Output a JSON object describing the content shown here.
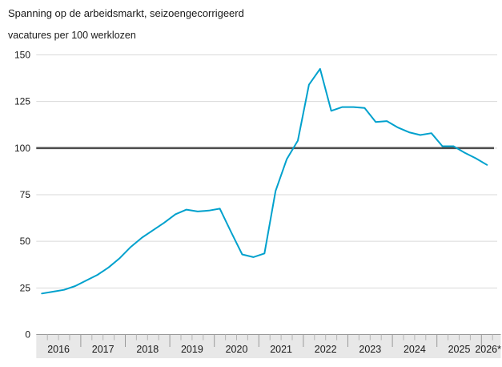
{
  "chart_data": {
    "type": "line",
    "title": "Spanning op de arbeidsmarkt, seizoengecorrigeerd",
    "subtitle": "vacatures per 100 werklozen",
    "frequency": "quarterly",
    "values_start": "2016Q1",
    "x_years": [
      "2016",
      "2017",
      "2018",
      "2019",
      "2020",
      "2021",
      "2022",
      "2023",
      "2024",
      "2025",
      "2026*"
    ],
    "series": [
      {
        "name": "vacatures per 100 werklozen, seizoengecorrigeerd",
        "values": [
          22,
          23,
          24,
          26,
          29,
          32,
          36,
          41,
          47,
          52,
          56,
          60,
          64.5,
          67,
          66,
          66.5,
          67.5,
          55,
          43,
          41.5,
          43.5,
          77,
          94,
          104,
          134,
          142.5,
          120,
          122,
          122,
          121.5,
          114,
          114.5,
          111,
          108.5,
          107,
          108,
          101,
          101,
          97.5,
          94.5,
          91
        ]
      }
    ],
    "yticks": [
      0,
      25,
      50,
      75,
      100,
      125,
      150
    ],
    "ylim": [
      0,
      150
    ],
    "reference_line": 100,
    "grid": "horizontal",
    "legend": "none",
    "colors": {
      "line": "#00a1cd",
      "reference": "#4f4f4f",
      "grid": "#d9d9d9",
      "axis_band": "#e8e8e8",
      "axis_band_border": "#9a9a9a",
      "year_separator": "#9a9a9a",
      "quarter_tick": "#b5b5b5",
      "text": "#1a1a1a"
    }
  }
}
